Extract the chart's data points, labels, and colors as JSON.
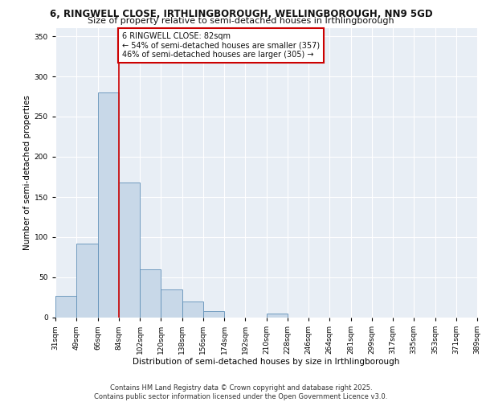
{
  "title_line1": "6, RINGWELL CLOSE, IRTHLINGBOROUGH, WELLINGBOROUGH, NN9 5GD",
  "title_line2": "Size of property relative to semi-detached houses in Irthlingborough",
  "xlabel": "Distribution of semi-detached houses by size in Irthlingborough",
  "ylabel": "Number of semi-detached properties",
  "footnote": "Contains HM Land Registry data © Crown copyright and database right 2025.\nContains public sector information licensed under the Open Government Licence v3.0.",
  "bin_labels": [
    "31sqm",
    "49sqm",
    "66sqm",
    "84sqm",
    "102sqm",
    "120sqm",
    "138sqm",
    "156sqm",
    "174sqm",
    "192sqm",
    "210sqm",
    "228sqm",
    "246sqm",
    "264sqm",
    "281sqm",
    "299sqm",
    "317sqm",
    "335sqm",
    "353sqm",
    "371sqm",
    "389sqm"
  ],
  "bar_values": [
    27,
    92,
    280,
    168,
    60,
    35,
    20,
    8,
    0,
    0,
    5,
    0,
    0,
    0,
    0,
    0,
    0,
    0,
    0,
    0
  ],
  "bar_color": "#c8d8e8",
  "bar_edge_color": "#6090b8",
  "vline_color": "#cc0000",
  "vline_label": "6 RINGWELL CLOSE: 82sqm",
  "annotation_line1": "← 54% of semi-detached houses are smaller (357)",
  "annotation_line2": "46% of semi-detached houses are larger (305) →",
  "annotation_box_color": "#cc0000",
  "ylim": [
    0,
    360
  ],
  "yticks": [
    0,
    50,
    100,
    150,
    200,
    250,
    300,
    350
  ],
  "background_color": "#e8eef5",
  "grid_color": "#ffffff",
  "title_fontsize": 8.5,
  "subtitle_fontsize": 8,
  "axis_label_fontsize": 7.5,
  "tick_fontsize": 6.5,
  "footnote_fontsize": 6,
  "annotation_fontsize": 7
}
